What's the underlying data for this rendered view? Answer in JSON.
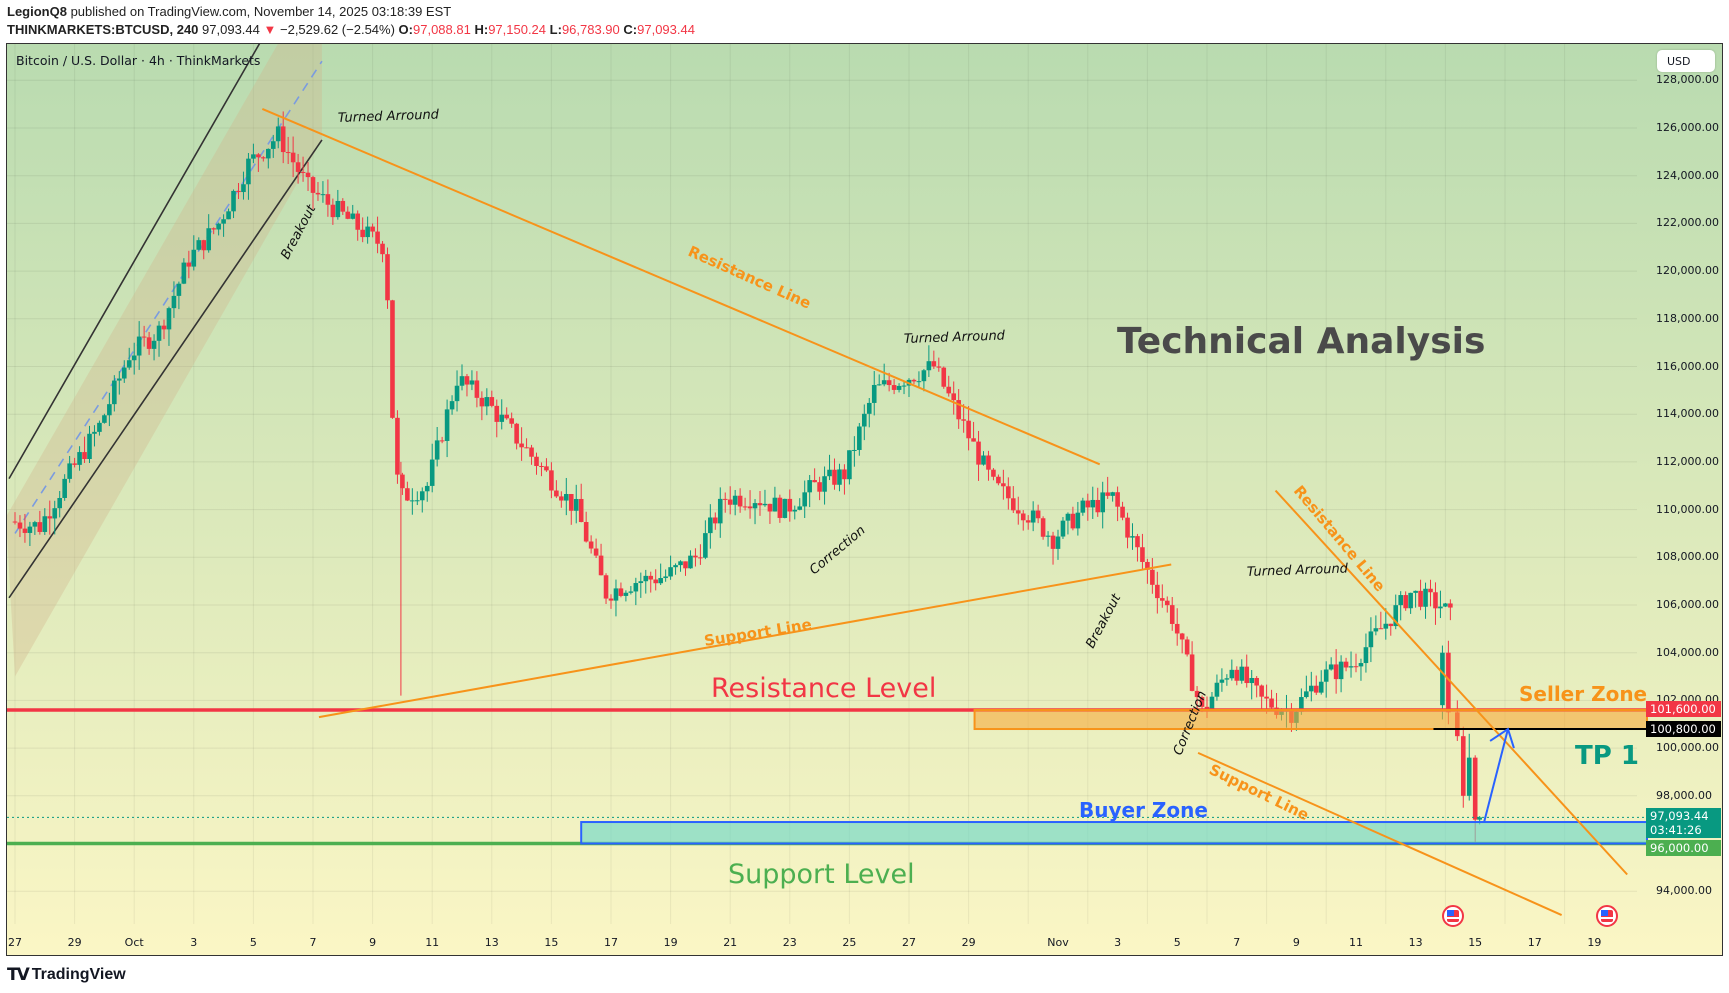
{
  "header": {
    "author": "LegionQ8",
    "published_text": "published on TradingView.com, November 14, 2025 03:18:39 EST",
    "symbol": "THINKMARKETS:BTCUSD, 240",
    "last_price": "97,093.44",
    "change_arrow": "▼",
    "change": "−2,529.62 (−2.54%)",
    "open_label": "O:",
    "open": "97,088.81",
    "high_label": "H:",
    "high": "97,150.24",
    "low_label": "L:",
    "low": "96,783.90",
    "close_label": "C:",
    "close": "97,093.44"
  },
  "chart": {
    "legend_title": "Bitcoin / U.S. Dollar · 4h · ThinkMarkets",
    "currency_button": "USD",
    "background_top": "#b9dbb0",
    "background_bottom": "#fbf6c5",
    "colors": {
      "up": "#089981",
      "down": "#f23645",
      "trend": "#f7931a",
      "channel": "#333333",
      "resistance_level": "#f23645",
      "support_level": "#4caf50",
      "buyer_zone": "#2962ff",
      "seller_zone": "#f7931a"
    }
  },
  "price_axis": {
    "labels": [
      "128,000.00",
      "126,000.00",
      "124,000.00",
      "122,000.00",
      "120,000.00",
      "118,000.00",
      "116,000.00",
      "114,000.00",
      "112,000.00",
      "110,000.00",
      "108,000.00",
      "106,000.00",
      "104,000.00",
      "102,000.00",
      "100,000.00",
      "98,000.00",
      "94,000.00"
    ],
    "tags": [
      {
        "text": "101,600.00",
        "bg": "#f23645"
      },
      {
        "text": "100,800.00",
        "bg": "#000000"
      },
      {
        "text": "97,093.44",
        "sub": "03:41:26",
        "bg": "#089981"
      },
      {
        "text": "96,000.00",
        "bg": "#4caf50"
      }
    ]
  },
  "time_axis": {
    "labels": [
      "27",
      "29",
      "Oct",
      "3",
      "5",
      "7",
      "9",
      "11",
      "13",
      "15",
      "17",
      "19",
      "21",
      "23",
      "25",
      "27",
      "29",
      "Nov",
      "3",
      "5",
      "7",
      "9",
      "11",
      "13",
      "15",
      "17",
      "19"
    ]
  },
  "annotations": {
    "title": "Technical Analysis",
    "resistance_level": "Resistance Level",
    "support_level": "Support Level",
    "seller_zone": "Seller Zone",
    "buyer_zone": "Buyer Zone",
    "tp1": "TP 1",
    "resistance_line_1": "Resistance Line",
    "resistance_line_2": "Resistance Line",
    "support_line_1": "Support Line",
    "support_line_2": "Support Line",
    "turned_around_1": "Turned Arround",
    "turned_around_2": "Turned Arround",
    "turned_around_3": "Turned Arround",
    "breakout_1": "Breakout",
    "breakout_2": "Breakout",
    "correction_1": "Correction",
    "correction_2": "Correction"
  },
  "footer": {
    "brand": "TradingView"
  },
  "chart_data": {
    "type": "candlestick",
    "title": "Bitcoin / U.S. Dollar · 4h · ThinkMarkets",
    "x_range": [
      "Sep 27, 2025",
      "Nov 20, 2025"
    ],
    "ylim": [
      92500,
      128500
    ],
    "grid": true,
    "approx_path": [
      {
        "date": "Sep 27",
        "price": 109500
      },
      {
        "date": "Sep 29",
        "price": 111500
      },
      {
        "date": "Oct 1",
        "price": 116500
      },
      {
        "date": "Oct 3",
        "price": 120500
      },
      {
        "date": "Oct 5",
        "price": 124500
      },
      {
        "date": "Oct 6",
        "price": 126100
      },
      {
        "date": "Oct 8",
        "price": 123000
      },
      {
        "date": "Oct 10",
        "price": 121500
      },
      {
        "date": "Oct 10 (wick low)",
        "price": 102200
      },
      {
        "date": "Oct 11",
        "price": 110500
      },
      {
        "date": "Oct 13",
        "price": 115500
      },
      {
        "date": "Oct 15",
        "price": 111500
      },
      {
        "date": "Oct 17",
        "price": 106500
      },
      {
        "date": "Oct 17 (low)",
        "price": 103600
      },
      {
        "date": "Oct 21",
        "price": 108000
      },
      {
        "date": "Oct 23",
        "price": 110500
      },
      {
        "date": "Oct 25",
        "price": 111500
      },
      {
        "date": "Oct 27",
        "price": 115500
      },
      {
        "date": "Oct 28",
        "price": 116300
      },
      {
        "date": "Oct 30",
        "price": 110000
      },
      {
        "date": "Oct 31",
        "price": 108800
      },
      {
        "date": "Nov 1",
        "price": 110000
      },
      {
        "date": "Nov 3",
        "price": 107000
      },
      {
        "date": "Nov 4",
        "price": 101000
      },
      {
        "date": "Nov 5",
        "price": 99000
      },
      {
        "date": "Nov 6",
        "price": 103500
      },
      {
        "date": "Nov 7",
        "price": 100800
      },
      {
        "date": "Nov 9",
        "price": 102000
      },
      {
        "date": "Nov 10",
        "price": 106500
      },
      {
        "date": "Nov 11",
        "price": 107500
      },
      {
        "date": "Nov 12",
        "price": 103000
      },
      {
        "date": "Nov 13",
        "price": 101800
      },
      {
        "date": "Nov 14",
        "price": 97093
      }
    ],
    "levels": [
      {
        "name": "Resistance Level",
        "price": 101600
      },
      {
        "name": "Seller Zone",
        "from": 100800,
        "to": 101600
      },
      {
        "name": "Buyer Zone",
        "from": 96000,
        "to": 96900
      },
      {
        "name": "Support Level",
        "price": 96000
      },
      {
        "name": "TP 1",
        "price": 100800
      }
    ],
    "ylabel": "USD"
  }
}
